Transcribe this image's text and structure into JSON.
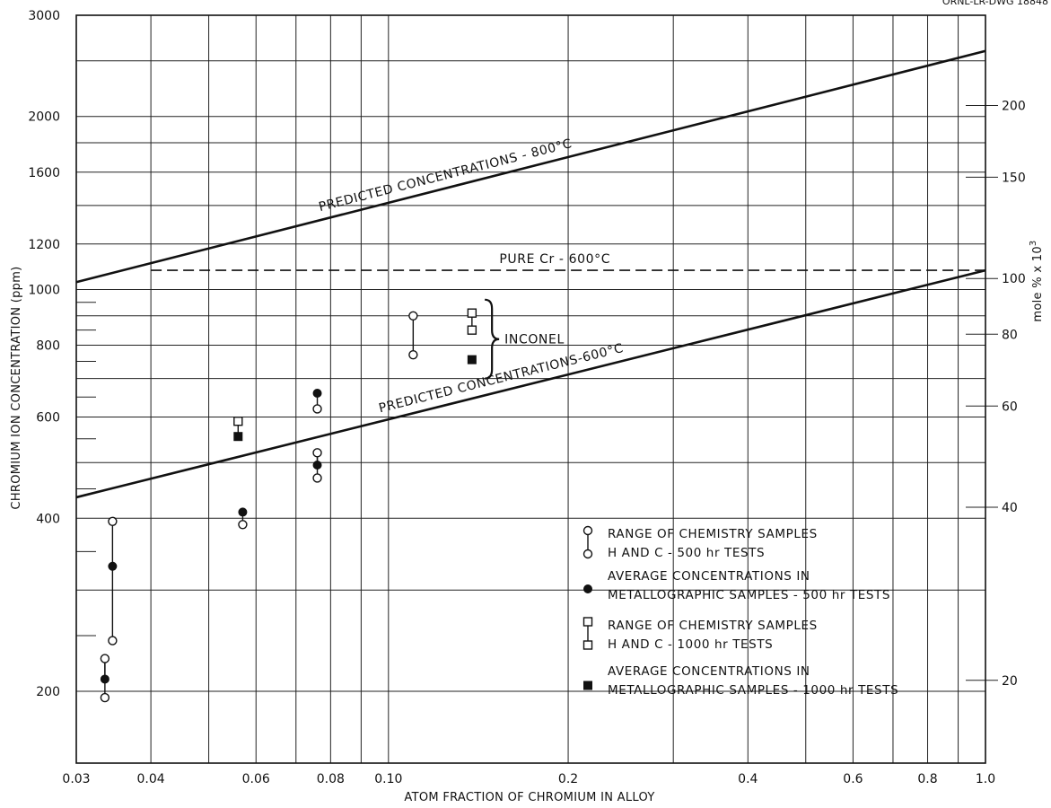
{
  "corner_id": "ORNL-LR-DWG 18848",
  "chart_data": {
    "type": "scatter",
    "title": "",
    "xlabel": "ATOM FRACTION OF CHROMIUM IN ALLOY",
    "ylabel": "CHROMIUM ION CONCENTRATION (ppm)",
    "y2label": "mole % x 10",
    "y2label_sup": "3",
    "x_scale": "log",
    "y_scale": "log",
    "xlim": [
      0.03,
      1.0
    ],
    "ylim": [
      150,
      3000
    ],
    "grid": true,
    "x_ticks": [
      {
        "v": 0.03,
        "label": "0.03"
      },
      {
        "v": 0.04,
        "label": "0.04"
      },
      {
        "v": 0.06,
        "label": "0.06"
      },
      {
        "v": 0.08,
        "label": "0.08"
      },
      {
        "v": 0.1,
        "label": "0.10"
      },
      {
        "v": 0.2,
        "label": "0.2"
      },
      {
        "v": 0.4,
        "label": "0.4"
      },
      {
        "v": 0.6,
        "label": "0.6"
      },
      {
        "v": 0.8,
        "label": "0.8"
      },
      {
        "v": 1.0,
        "label": "1.0"
      }
    ],
    "y_ticks": [
      {
        "v": 200,
        "label": "200"
      },
      {
        "v": 400,
        "label": "400"
      },
      {
        "v": 600,
        "label": "600"
      },
      {
        "v": 800,
        "label": "800"
      },
      {
        "v": 1000,
        "label": "1000"
      },
      {
        "v": 1200,
        "label": "1200"
      },
      {
        "v": 1600,
        "label": "1600"
      },
      {
        "v": 2000,
        "label": "2000"
      },
      {
        "v": 3000,
        "label": "3000"
      }
    ],
    "y2_ticks": [
      {
        "v": 209,
        "label": "20"
      },
      {
        "v": 418,
        "label": "40"
      },
      {
        "v": 627,
        "label": "60"
      },
      {
        "v": 836,
        "label": "80"
      },
      {
        "v": 1045,
        "label": "100"
      },
      {
        "v": 1568,
        "label": "150"
      },
      {
        "v": 2090,
        "label": "200"
      }
    ],
    "x_minor_grid": [
      0.05,
      0.07,
      0.09,
      0.3,
      0.5,
      0.7,
      0.9
    ],
    "y_minor_grid": [
      300,
      500,
      700,
      900,
      1400,
      1800,
      2500
    ],
    "lines": [
      {
        "name": "PREDICTED  CONCENTRATIONS - 800°C",
        "style": "solid",
        "points": [
          [
            0.03,
            1030
          ],
          [
            1.0,
            2600
          ]
        ]
      },
      {
        "name": "PREDICTED  CONCENTRATIONS-600°C",
        "style": "solid",
        "points": [
          [
            0.03,
            435
          ],
          [
            1.0,
            1080
          ]
        ]
      },
      {
        "name": "PURE  Cr - 600°C",
        "style": "dashed",
        "points": [
          [
            0.04,
            1080
          ],
          [
            1.0,
            1080
          ]
        ]
      }
    ],
    "series": [
      {
        "name": "RANGE OF CHEMISTRY SAMPLES H AND C - 500 hr TESTS",
        "marker": "open-circle",
        "ranges": [
          {
            "x": 0.0335,
            "low": 195,
            "high": 228
          },
          {
            "x": 0.0345,
            "low": 245,
            "high": 395
          },
          {
            "x": 0.057,
            "low": 390,
            "high": 390
          },
          {
            "x": 0.076,
            "low": 470,
            "high": 520
          },
          {
            "x": 0.076,
            "low": 620,
            "high": 620
          },
          {
            "x": 0.11,
            "low": 770,
            "high": 900
          }
        ]
      },
      {
        "name": "AVERAGE CONCENTRATIONS IN METALLOGRAPHIC SAMPLES - 500 hr TESTS",
        "marker": "filled-circle",
        "points": [
          {
            "x": 0.0335,
            "y": 210
          },
          {
            "x": 0.0345,
            "y": 330
          },
          {
            "x": 0.057,
            "y": 410
          },
          {
            "x": 0.076,
            "y": 495
          },
          {
            "x": 0.076,
            "y": 660
          }
        ]
      },
      {
        "name": "RANGE OF CHEMISTRY SAMPLES H AND C - 1000 hr TESTS",
        "marker": "open-square",
        "ranges": [
          {
            "x": 0.056,
            "low": 590,
            "high": 590
          },
          {
            "x": 0.138,
            "low": 850,
            "high": 910
          }
        ]
      },
      {
        "name": "AVERAGE CONCENTRATIONS IN METALLOGRAPHIC SAMPLES - 1000 hr TESTS",
        "marker": "filled-square",
        "points": [
          {
            "x": 0.056,
            "y": 555
          },
          {
            "x": 0.138,
            "y": 755
          }
        ]
      }
    ],
    "annotations": {
      "inconel": "INCONEL"
    },
    "legend": {
      "placement": "bottom-right",
      "entries": [
        {
          "marker": "open-circle-range",
          "line1": "RANGE OF CHEMISTRY SAMPLES",
          "line2": "H AND C - 500 hr TESTS"
        },
        {
          "marker": "filled-circle",
          "line1": "AVERAGE CONCENTRATIONS IN",
          "line2": "METALLOGRAPHIC SAMPLES - 500 hr TESTS"
        },
        {
          "marker": "open-square-range",
          "line1": "RANGE OF CHEMISTRY SAMPLES",
          "line2": "H AND C - 1000 hr TESTS"
        },
        {
          "marker": "filled-square",
          "line1": "AVERAGE CONCENTRATIONS IN",
          "line2": "METALLOGRAPHIC SAMPLES - 1000 hr TESTS"
        }
      ]
    }
  }
}
